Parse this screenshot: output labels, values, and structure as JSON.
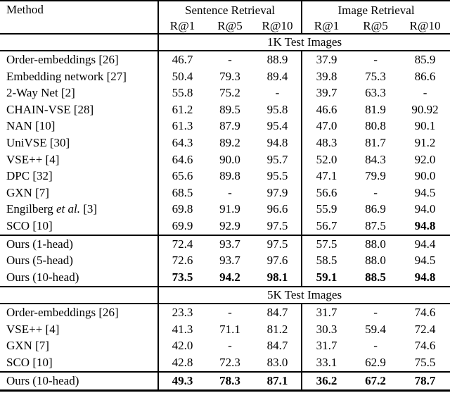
{
  "colors": {
    "text": "#000000",
    "background": "#ffffff",
    "rule": "#000000"
  },
  "table": {
    "method_header": "Method",
    "group_headers": [
      "Sentence Retrieval",
      "Image Retrieval"
    ],
    "sub_headers": [
      "R@1",
      "R@5",
      "R@10",
      "R@1",
      "R@5",
      "R@10"
    ],
    "sections": [
      {
        "band_label": "1K Test Images",
        "row_groups": [
          {
            "rows": [
              {
                "method": "Order-embeddings [26]",
                "values": [
                  "46.7",
                  "-",
                  "88.9",
                  "37.9",
                  "-",
                  "85.9"
                ],
                "bold": []
              },
              {
                "method": "Embedding network [27]",
                "values": [
                  "50.4",
                  "79.3",
                  "89.4",
                  "39.8",
                  "75.3",
                  "86.6"
                ],
                "bold": []
              },
              {
                "method": "2-Way Net [2]",
                "values": [
                  "55.8",
                  "75.2",
                  "-",
                  "39.7",
                  "63.3",
                  "-"
                ],
                "bold": []
              },
              {
                "method": "CHAIN-VSE [28]",
                "values": [
                  "61.2",
                  "89.5",
                  "95.8",
                  "46.6",
                  "81.9",
                  "90.92"
                ],
                "bold": []
              },
              {
                "method": "NAN [10]",
                "values": [
                  "61.3",
                  "87.9",
                  "95.4",
                  "47.0",
                  "80.8",
                  "90.1"
                ],
                "bold": []
              },
              {
                "method": "UniVSE [30]",
                "values": [
                  "64.3",
                  "89.2",
                  "94.8",
                  "48.3",
                  "81.7",
                  "91.2"
                ],
                "bold": []
              },
              {
                "method": "VSE++ [4]",
                "values": [
                  "64.6",
                  "90.0",
                  "95.7",
                  "52.0",
                  "84.3",
                  "92.0"
                ],
                "bold": []
              },
              {
                "method": "DPC [32]",
                "values": [
                  "65.6",
                  "89.8",
                  "95.5",
                  "47.1",
                  "79.9",
                  "90.0"
                ],
                "bold": []
              },
              {
                "method": "GXN [7]",
                "values": [
                  "68.5",
                  "-",
                  "97.9",
                  "56.6",
                  "-",
                  "94.5"
                ],
                "bold": []
              },
              {
                "method": "Engilberg et al. [3]",
                "italic_substring": "et al.",
                "values": [
                  "69.8",
                  "91.9",
                  "96.6",
                  "55.9",
                  "86.9",
                  "94.0"
                ],
                "bold": []
              },
              {
                "method": "SCO [10]",
                "values": [
                  "69.9",
                  "92.9",
                  "97.5",
                  "56.7",
                  "87.5",
                  "94.8"
                ],
                "bold": [
                  5
                ]
              }
            ]
          },
          {
            "rows": [
              {
                "method": "Ours (1-head)",
                "values": [
                  "72.4",
                  "93.7",
                  "97.5",
                  "57.5",
                  "88.0",
                  "94.4"
                ],
                "bold": []
              },
              {
                "method": "Ours (5-head)",
                "values": [
                  "72.6",
                  "93.7",
                  "97.6",
                  "58.5",
                  "88.0",
                  "94.5"
                ],
                "bold": []
              },
              {
                "method": "Ours (10-head)",
                "values": [
                  "73.5",
                  "94.2",
                  "98.1",
                  "59.1",
                  "88.5",
                  "94.8"
                ],
                "bold": [
                  0,
                  1,
                  2,
                  3,
                  4,
                  5
                ]
              }
            ]
          }
        ]
      },
      {
        "band_label": "5K Test Images",
        "row_groups": [
          {
            "rows": [
              {
                "method": "Order-embeddings [26]",
                "values": [
                  "23.3",
                  "-",
                  "84.7",
                  "31.7",
                  "-",
                  "74.6"
                ],
                "bold": []
              },
              {
                "method": "VSE++ [4]",
                "values": [
                  "41.3",
                  "71.1",
                  "81.2",
                  "30.3",
                  "59.4",
                  "72.4"
                ],
                "bold": []
              },
              {
                "method": "GXN [7]",
                "values": [
                  "42.0",
                  "-",
                  "84.7",
                  "31.7",
                  "-",
                  "74.6"
                ],
                "bold": []
              },
              {
                "method": "SCO [10]",
                "values": [
                  "42.8",
                  "72.3",
                  "83.0",
                  "33.1",
                  "62.9",
                  "75.5"
                ],
                "bold": []
              }
            ]
          },
          {
            "rows": [
              {
                "method": "Ours (10-head)",
                "values": [
                  "49.3",
                  "78.3",
                  "87.1",
                  "36.2",
                  "67.2",
                  "78.7"
                ],
                "bold": [
                  0,
                  1,
                  2,
                  3,
                  4,
                  5
                ]
              }
            ]
          }
        ]
      }
    ]
  }
}
